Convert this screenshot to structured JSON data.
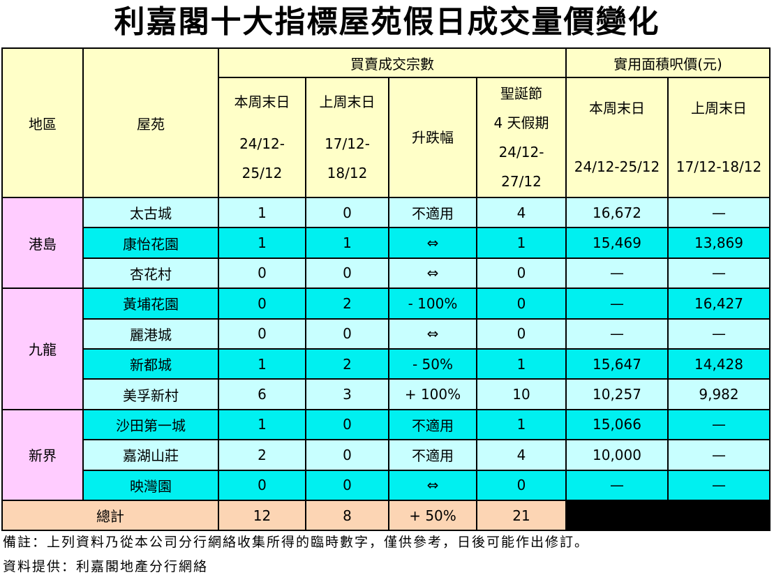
{
  "title": "利嘉閣十大指標屋苑假日成交量價變化",
  "table": {
    "header": {
      "region": "地區",
      "estate": "屋苑",
      "transactions": "買賣成交宗數",
      "price": "實用面積呎價(元)",
      "columns": [
        {
          "label": [
            "本周末日"
          ],
          "period": [
            "24/12-",
            "25/12"
          ]
        },
        {
          "label": [
            "上周末日"
          ],
          "period": [
            "17/12-",
            "18/12"
          ]
        },
        {
          "label": [
            "升跌幅"
          ]
        },
        {
          "label": [
            "聖誕節",
            "4 天假期"
          ],
          "period": [
            "24/12-",
            "27/12"
          ]
        },
        {
          "label": [
            "本周末日"
          ],
          "period": [
            "24/12-25/12"
          ]
        },
        {
          "label": [
            "上周末日"
          ],
          "period": [
            "17/12-18/12"
          ]
        }
      ]
    },
    "groups": [
      {
        "region": "港島",
        "rows": [
          [
            "太古城",
            "1",
            "0",
            "不適用",
            "4",
            "16,672",
            "—"
          ],
          [
            "康怡花園",
            "1",
            "1",
            "⇔",
            "1",
            "15,469",
            "13,869"
          ],
          [
            "杏花村",
            "0",
            "0",
            "⇔",
            "0",
            "—",
            "—"
          ]
        ]
      },
      {
        "region": "九龍",
        "rows": [
          [
            "黃埔花園",
            "0",
            "2",
            "- 100%",
            "0",
            "—",
            "16,427"
          ],
          [
            "麗港城",
            "0",
            "0",
            "⇔",
            "0",
            "—",
            "—"
          ],
          [
            "新都城",
            "1",
            "2",
            "- 50%",
            "1",
            "15,647",
            "14,428"
          ],
          [
            "美孚新村",
            "6",
            "3",
            "+ 100%",
            "10",
            "10,257",
            "9,982"
          ]
        ]
      },
      {
        "region": "新界",
        "rows": [
          [
            "沙田第一城",
            "1",
            "0",
            "不適用",
            "1",
            "15,066",
            "—"
          ],
          [
            "嘉湖山莊",
            "2",
            "0",
            "不適用",
            "4",
            "10,000",
            "—"
          ],
          [
            "映灣園",
            "0",
            "0",
            "⇔",
            "0",
            "—",
            "—"
          ]
        ]
      }
    ],
    "total": {
      "label": "總計",
      "values": [
        "12",
        "8",
        "+ 50%",
        "21"
      ]
    }
  },
  "notes": [
    "備註：上列資料乃從本公司分行網絡收集所得的臨時數字，僅供參考，日後可能作出修訂。",
    "資料提供：利嘉閣地產分行網絡"
  ]
}
